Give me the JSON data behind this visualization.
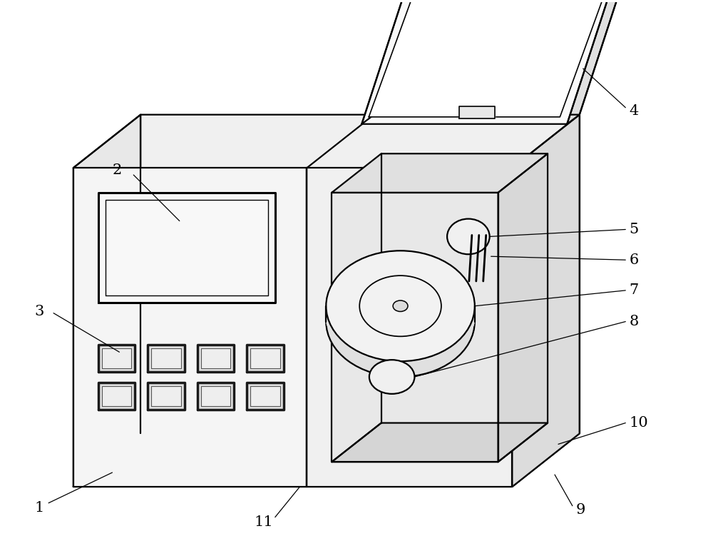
{
  "bg_color": "#ffffff",
  "line_color": "#000000",
  "lw": 1.6,
  "labels": [
    "1",
    "2",
    "3",
    "4",
    "5",
    "6",
    "7",
    "8",
    "9",
    "10",
    "11"
  ],
  "label_fontsize": 15
}
